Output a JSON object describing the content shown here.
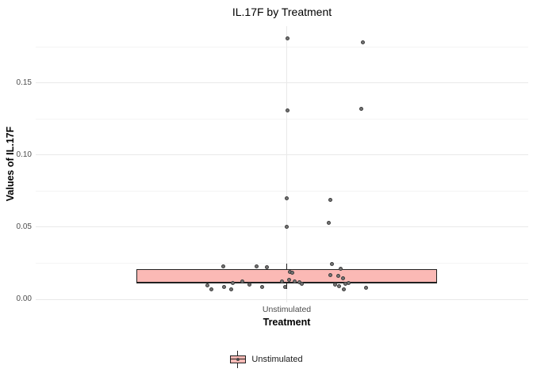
{
  "title": "IL.17F by Treatment",
  "axes": {
    "y": {
      "title": "Values of IL.17F",
      "ticks": [
        {
          "value": 0.0,
          "label": "0.00"
        },
        {
          "value": 0.05,
          "label": "0.05"
        },
        {
          "value": 0.1,
          "label": "0.10"
        },
        {
          "value": 0.15,
          "label": "0.15"
        }
      ],
      "minor_ticks": [
        0.025,
        0.075,
        0.125,
        0.175
      ]
    },
    "x": {
      "title": "Treatment",
      "category": "Unstimulated"
    }
  },
  "legend": {
    "label": "Unstimulated"
  },
  "colors": {
    "box_fill": "#FBB9B5",
    "box_border": "#202020",
    "point_fill": "#757575",
    "point_border": "#3C3C3C",
    "grid_major": "#E9E9E9",
    "grid_minor": "#F4F4F4",
    "tick_label": "#4D4D4D",
    "text": "#000000"
  },
  "chart_data": {
    "type": "boxplot",
    "title": "IL.17F by Treatment",
    "xlabel": "Treatment",
    "ylabel": "Values of IL.17F",
    "categories": [
      "Unstimulated"
    ],
    "ylim": [
      -0.002,
      0.19
    ],
    "grid": true,
    "legend_position": "bottom",
    "series": [
      {
        "name": "Unstimulated",
        "box": {
          "q1": 0.011,
          "median": 0.0115,
          "q3": 0.021,
          "whisker_low": 0.007,
          "whisker_high": 0.0245
        },
        "jitter_points_dx_value": [
          [
            0.5,
            0.181
          ],
          [
            95.5,
            0.178
          ],
          [
            0.5,
            0.131
          ],
          [
            93.5,
            0.132
          ],
          [
            -0.5,
            0.07
          ],
          [
            54.5,
            0.069
          ],
          [
            -0.5,
            0.05
          ],
          [
            52.5,
            0.053
          ],
          [
            -100.5,
            0.0095
          ],
          [
            -95.5,
            0.0071
          ],
          [
            -80.5,
            0.023
          ],
          [
            -79.5,
            0.0086
          ],
          [
            -70.5,
            0.0068
          ],
          [
            -68.5,
            0.0112
          ],
          [
            -56.5,
            0.0126
          ],
          [
            -47.5,
            0.0103
          ],
          [
            -38.5,
            0.023
          ],
          [
            -31.5,
            0.0086
          ],
          [
            -25.5,
            0.022
          ],
          [
            -6.5,
            0.0123
          ],
          [
            -2.5,
            0.0086
          ],
          [
            2.5,
            0.0137
          ],
          [
            3.5,
            0.0187
          ],
          [
            6.5,
            0.0185
          ],
          [
            9.5,
            0.0126
          ],
          [
            15.5,
            0.0117
          ],
          [
            18.5,
            0.0108
          ],
          [
            56.5,
            0.0245
          ],
          [
            54.5,
            0.0167
          ],
          [
            60.5,
            0.0103
          ],
          [
            64.5,
            0.0163
          ],
          [
            65.5,
            0.0093
          ],
          [
            67.5,
            0.0213
          ],
          [
            70.5,
            0.0145
          ],
          [
            71.5,
            0.0071
          ],
          [
            73.5,
            0.0108
          ],
          [
            77.5,
            0.0112
          ],
          [
            99.5,
            0.008
          ]
        ]
      }
    ]
  }
}
